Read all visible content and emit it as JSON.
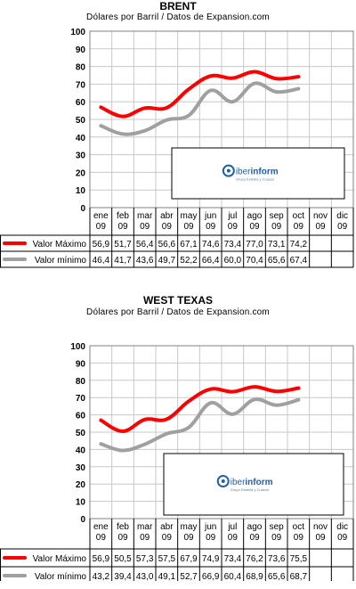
{
  "chart_data": [
    {
      "type": "line",
      "title": "BRENT",
      "subtitle": "Dólares por Barril / Datos de Expansion.com",
      "categories": [
        [
          "ene",
          "09"
        ],
        [
          "feb",
          "09"
        ],
        [
          "mar",
          "09"
        ],
        [
          "abr",
          "09"
        ],
        [
          "may",
          "09"
        ],
        [
          "jun",
          "09"
        ],
        [
          "jul",
          "09"
        ],
        [
          "ago",
          "09"
        ],
        [
          "sep",
          "09"
        ],
        [
          "oct",
          "09"
        ],
        [
          "nov",
          "09"
        ],
        [
          "dic",
          "09"
        ]
      ],
      "ylim": [
        0,
        100
      ],
      "yticks": [
        0,
        10,
        20,
        30,
        40,
        50,
        60,
        70,
        80,
        90,
        100
      ],
      "grid": true,
      "series": [
        {
          "name": "Valor Máximo",
          "color": "#ff0000",
          "values": [
            56.9,
            51.7,
            56.4,
            56.6,
            67.1,
            74.6,
            73.4,
            77.0,
            73.1,
            74.2,
            null,
            null
          ],
          "labels": [
            "56,9",
            "51,7",
            "56,4",
            "56,6",
            "67,1",
            "74,6",
            "73,4",
            "77,0",
            "73,1",
            "74,2",
            "",
            ""
          ]
        },
        {
          "name": "Valor mínimo",
          "color": "#a0a0a0",
          "values": [
            46.4,
            41.7,
            43.6,
            49.7,
            52.2,
            66.4,
            60.0,
            70.4,
            65.6,
            67.4,
            null,
            null
          ],
          "labels": [
            "46,4",
            "41,7",
            "43,6",
            "49,7",
            "52,2",
            "66,4",
            "60,0",
            "70,4",
            "65,6",
            "67,4",
            "",
            ""
          ]
        }
      ],
      "logo": {
        "brand_a": "iber",
        "brand_b": "inform",
        "tagline": "Grupo Estrella y Cuaces"
      }
    },
    {
      "type": "line",
      "title": "WEST TEXAS",
      "subtitle": "Dólares por Barril / Datos de Expansion.com",
      "categories": [
        [
          "ene",
          "09"
        ],
        [
          "feb",
          "09"
        ],
        [
          "mar",
          "09"
        ],
        [
          "abr",
          "09"
        ],
        [
          "may",
          "09"
        ],
        [
          "jun",
          "09"
        ],
        [
          "jul",
          "09"
        ],
        [
          "ago",
          "09"
        ],
        [
          "sep",
          "09"
        ],
        [
          "oct",
          "09"
        ],
        [
          "nov",
          "09"
        ],
        [
          "dic",
          "09"
        ]
      ],
      "ylim": [
        0,
        100
      ],
      "yticks": [
        0,
        10,
        20,
        30,
        40,
        50,
        60,
        70,
        80,
        90,
        100
      ],
      "grid": true,
      "series": [
        {
          "name": "Valor Máximo",
          "color": "#ff0000",
          "values": [
            56.9,
            50.5,
            57.3,
            57.5,
            67.9,
            74.9,
            73.4,
            76.2,
            73.6,
            75.5,
            null,
            null
          ],
          "labels": [
            "56,9",
            "50,5",
            "57,3",
            "57,5",
            "67,9",
            "74,9",
            "73,4",
            "76,2",
            "73,6",
            "75,5",
            "",
            ""
          ]
        },
        {
          "name": "Valor mínimo",
          "color": "#a0a0a0",
          "values": [
            43.2,
            39.4,
            43.0,
            49.1,
            52.7,
            66.9,
            60.4,
            68.9,
            65.6,
            68.7,
            null,
            null
          ],
          "labels": [
            "43,2",
            "39,4",
            "43,0",
            "49,1",
            "52,7",
            "66,9",
            "60,4",
            "68,9",
            "65,6",
            "68,7",
            "",
            ""
          ]
        }
      ],
      "logo": {
        "brand_a": "iber",
        "brand_b": "inform",
        "tagline": "Grupo Estrella y Cuaces"
      }
    }
  ]
}
